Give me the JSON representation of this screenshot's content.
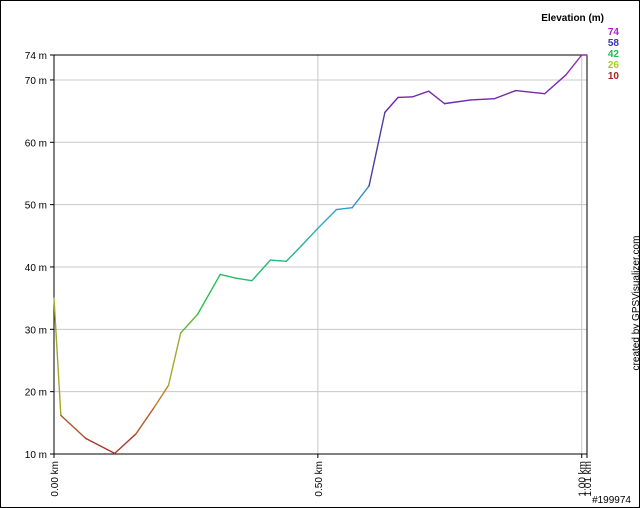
{
  "chart_data": {
    "type": "line",
    "title": "",
    "xlabel": "",
    "ylabel": "",
    "xlim": [
      0,
      1.01
    ],
    "ylim": [
      10,
      74
    ],
    "x_ticks": [
      {
        "value": 0,
        "label": "0.00 km"
      },
      {
        "value": 0.5,
        "label": "0.50 km"
      },
      {
        "value": 1.0,
        "label": "1.00 km"
      },
      {
        "value": 1.01,
        "label": "1.01 km"
      }
    ],
    "y_ticks": [
      {
        "value": 10,
        "label": "10 m"
      },
      {
        "value": 20,
        "label": "20 m"
      },
      {
        "value": 30,
        "label": "30 m"
      },
      {
        "value": 40,
        "label": "40 m"
      },
      {
        "value": 50,
        "label": "50 m"
      },
      {
        "value": 60,
        "label": "60 m"
      },
      {
        "value": 70,
        "label": "70 m"
      },
      {
        "value": 74,
        "label": "74 m"
      }
    ],
    "grid": true,
    "series": [
      {
        "x": [
          0.0,
          0.013,
          0.06,
          0.115,
          0.155,
          0.19,
          0.217,
          0.24,
          0.272,
          0.315,
          0.345,
          0.375,
          0.41,
          0.44,
          0.47,
          0.5,
          0.535,
          0.565,
          0.597,
          0.627,
          0.652,
          0.68,
          0.71,
          0.74,
          0.79,
          0.835,
          0.875,
          0.93,
          0.97,
          1.0,
          1.01
        ],
        "y": [
          35,
          16.2,
          12.5,
          10.1,
          13.2,
          17.5,
          21,
          29.4,
          32.4,
          38.8,
          38.2,
          37.8,
          41.1,
          40.9,
          43.5,
          46.2,
          49.2,
          49.5,
          53,
          64.8,
          67.2,
          67.3,
          68.2,
          66.2,
          66.8,
          67,
          68.3,
          67.8,
          70.8,
          74,
          74
        ]
      }
    ],
    "color_legend": {
      "title": "Elevation (m)",
      "entries": [
        {
          "label": "74",
          "color": "#aa22cc"
        },
        {
          "label": "58",
          "color": "#3333bb"
        },
        {
          "label": "42",
          "color": "#22bb55"
        },
        {
          "label": "26",
          "color": "#aacc22"
        },
        {
          "label": "10",
          "color": "#aa2222"
        }
      ]
    },
    "color_scale": [
      "#a52a2a",
      "#c8a020",
      "#28c050",
      "#2aa8c8",
      "#5028a0",
      "#9a28b4"
    ]
  },
  "credit": "created by GPSVisualizer.com",
  "watermark": "#199974"
}
